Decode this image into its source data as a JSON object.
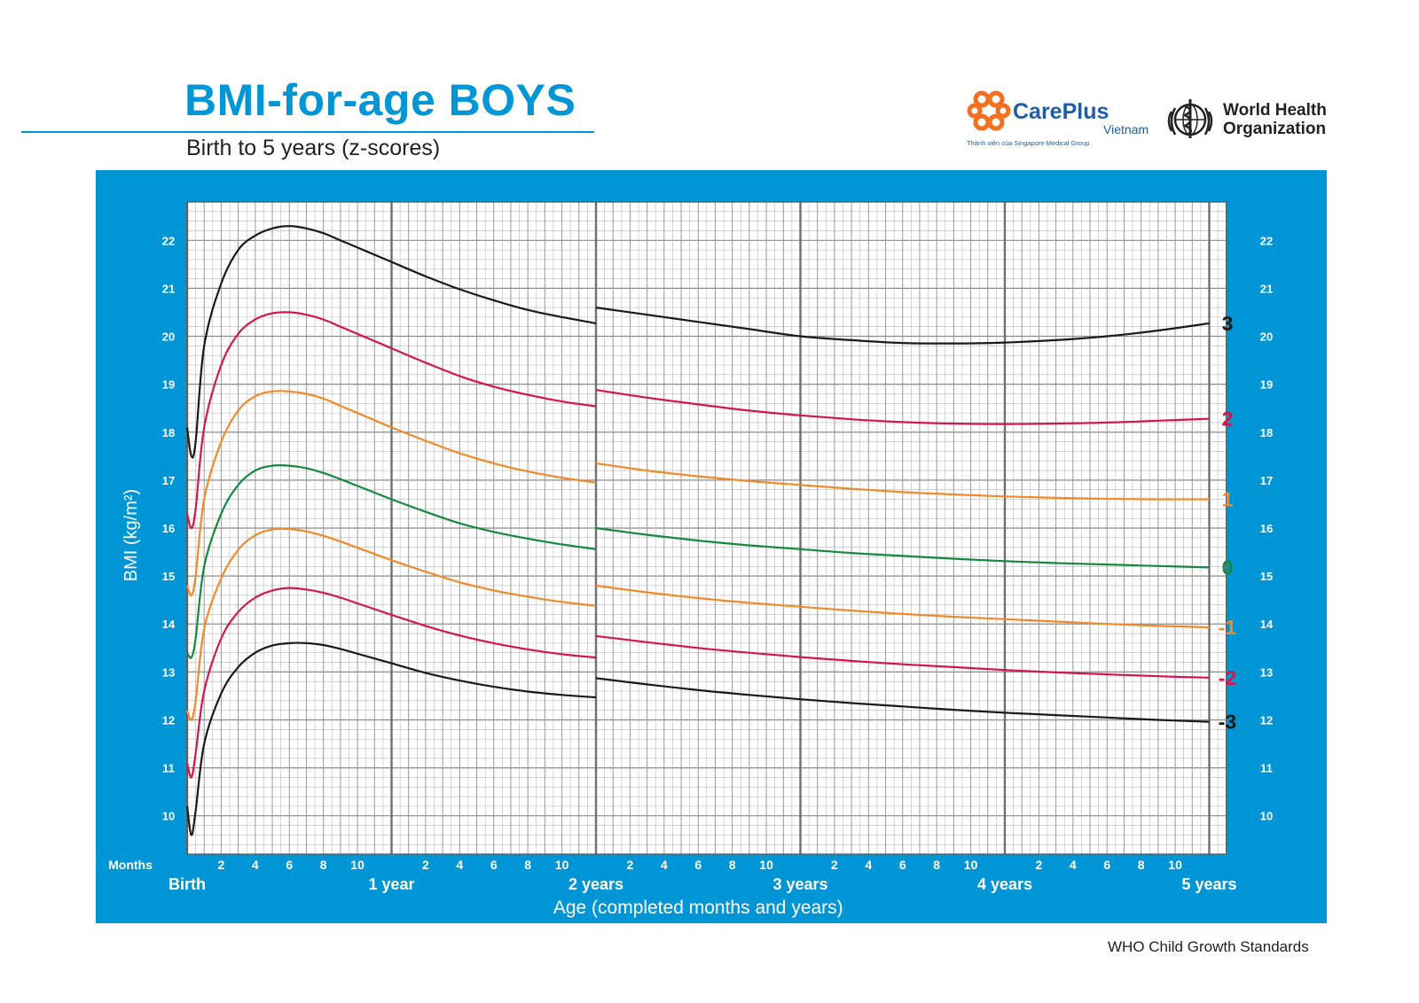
{
  "header": {
    "title": "BMI-for-age BOYS",
    "subtitle": "Birth to 5 years (z-scores)"
  },
  "logos": {
    "careplus": {
      "name": "CarePlus",
      "sub": "Vietnam",
      "tagline": "Thành viên của Singapore Medical Group",
      "icon": "careplus-cross-icon",
      "color": "#f37021"
    },
    "who": {
      "line1": "World Health",
      "line2": "Organization",
      "icon": "who-emblem-icon"
    }
  },
  "footer": {
    "source": "WHO Child Growth Standards"
  },
  "colors": {
    "panel": "#0096d6",
    "grid_fine": "#b9b9b9",
    "grid_major": "#707070",
    "sd3": "#1a1a1a",
    "sd2": "#d6164b",
    "sd1": "#f08a2a",
    "median": "#158a3e"
  },
  "chart_data": {
    "type": "line",
    "title": "BMI-for-age BOYS",
    "subtitle": "Birth to 5 years (z-scores)",
    "xlabel": "Age (completed months and years)",
    "ylabel": "BMI (kg/m²)",
    "x_unit_label": "Months",
    "xlim": [
      0,
      61
    ],
    "ylim": [
      9.2,
      22.8
    ],
    "y_ticks": [
      10,
      11,
      12,
      13,
      14,
      15,
      16,
      17,
      18,
      19,
      20,
      21,
      22
    ],
    "month_tick_labels": [
      "2",
      "4",
      "6",
      "8",
      "10"
    ],
    "year_labels": [
      {
        "month": 0,
        "label": "Birth"
      },
      {
        "month": 12,
        "label": "1 year"
      },
      {
        "month": 24,
        "label": "2 years"
      },
      {
        "month": 36,
        "label": "3 years"
      },
      {
        "month": 48,
        "label": "4 years"
      },
      {
        "month": 60,
        "label": "5 years"
      }
    ],
    "grid": true,
    "segment_break_month": 24,
    "series": [
      {
        "name": "3",
        "color_key": "sd3",
        "seg1": {
          "x": [
            0,
            0.25,
            0.5,
            1,
            2,
            3,
            4,
            5,
            6,
            7,
            8,
            9,
            10,
            11,
            12,
            14,
            16,
            18,
            20,
            22,
            24
          ],
          "y": [
            18.1,
            17.5,
            17.8,
            19.8,
            21.1,
            21.8,
            22.1,
            22.25,
            22.3,
            22.25,
            22.15,
            22.0,
            21.85,
            21.7,
            21.55,
            21.25,
            20.98,
            20.75,
            20.55,
            20.4,
            20.27
          ]
        },
        "seg2": {
          "x": [
            24,
            27,
            30,
            33,
            36,
            39,
            42,
            45,
            48,
            51,
            54,
            57,
            60
          ],
          "y": [
            20.6,
            20.45,
            20.3,
            20.15,
            20.0,
            19.92,
            19.86,
            19.85,
            19.87,
            19.92,
            20.0,
            20.12,
            20.27
          ]
        }
      },
      {
        "name": "2",
        "color_key": "sd2",
        "seg1": {
          "x": [
            0,
            0.25,
            0.5,
            1,
            2,
            3,
            4,
            5,
            6,
            7,
            8,
            9,
            10,
            11,
            12,
            14,
            16,
            18,
            20,
            22,
            24
          ],
          "y": [
            16.3,
            16.0,
            16.4,
            18.1,
            19.4,
            20.05,
            20.35,
            20.48,
            20.5,
            20.45,
            20.35,
            20.2,
            20.05,
            19.9,
            19.75,
            19.45,
            19.17,
            18.95,
            18.78,
            18.64,
            18.54
          ]
        },
        "seg2": {
          "x": [
            24,
            27,
            30,
            33,
            36,
            39,
            42,
            45,
            48,
            51,
            54,
            57,
            60
          ],
          "y": [
            18.88,
            18.72,
            18.58,
            18.45,
            18.35,
            18.27,
            18.21,
            18.18,
            18.17,
            18.18,
            18.2,
            18.24,
            18.28
          ]
        }
      },
      {
        "name": "1",
        "color_key": "sd1",
        "seg1": {
          "x": [
            0,
            0.25,
            0.5,
            1,
            2,
            3,
            4,
            5,
            6,
            7,
            8,
            9,
            10,
            11,
            12,
            14,
            16,
            18,
            20,
            22,
            24
          ],
          "y": [
            14.8,
            14.6,
            15.0,
            16.6,
            17.8,
            18.45,
            18.75,
            18.85,
            18.85,
            18.8,
            18.7,
            18.55,
            18.4,
            18.25,
            18.1,
            17.82,
            17.56,
            17.35,
            17.18,
            17.05,
            16.95
          ]
        },
        "seg2": {
          "x": [
            24,
            27,
            30,
            33,
            36,
            39,
            42,
            45,
            48,
            51,
            54,
            57,
            60
          ],
          "y": [
            17.35,
            17.2,
            17.08,
            16.98,
            16.9,
            16.82,
            16.75,
            16.7,
            16.66,
            16.63,
            16.61,
            16.6,
            16.6
          ]
        }
      },
      {
        "name": "0",
        "color_key": "median",
        "seg1": {
          "x": [
            0,
            0.25,
            0.5,
            1,
            2,
            3,
            4,
            5,
            6,
            7,
            8,
            9,
            10,
            11,
            12,
            14,
            16,
            18,
            20,
            22,
            24
          ],
          "y": [
            13.4,
            13.3,
            13.7,
            15.2,
            16.3,
            16.9,
            17.2,
            17.3,
            17.3,
            17.25,
            17.15,
            17.02,
            16.88,
            16.74,
            16.6,
            16.34,
            16.1,
            15.92,
            15.78,
            15.66,
            15.56
          ]
        },
        "seg2": {
          "x": [
            24,
            27,
            30,
            33,
            36,
            39,
            42,
            45,
            48,
            51,
            54,
            57,
            60
          ],
          "y": [
            16.0,
            15.86,
            15.74,
            15.64,
            15.56,
            15.48,
            15.42,
            15.36,
            15.31,
            15.27,
            15.24,
            15.21,
            15.18
          ]
        }
      },
      {
        "name": "-1",
        "color_key": "sd1",
        "seg1": {
          "x": [
            0,
            0.25,
            0.5,
            1,
            2,
            3,
            4,
            5,
            6,
            7,
            8,
            9,
            10,
            11,
            12,
            14,
            16,
            18,
            20,
            22,
            24
          ],
          "y": [
            12.2,
            12.0,
            12.4,
            13.9,
            14.95,
            15.55,
            15.85,
            15.97,
            15.98,
            15.93,
            15.84,
            15.72,
            15.59,
            15.46,
            15.33,
            15.09,
            14.87,
            14.7,
            14.57,
            14.46,
            14.38
          ]
        },
        "seg2": {
          "x": [
            24,
            27,
            30,
            33,
            36,
            39,
            42,
            45,
            48,
            51,
            54,
            57,
            60
          ],
          "y": [
            14.8,
            14.66,
            14.54,
            14.44,
            14.36,
            14.28,
            14.21,
            14.15,
            14.1,
            14.05,
            14.0,
            13.96,
            13.93
          ]
        }
      },
      {
        "name": "-2",
        "color_key": "sd2",
        "seg1": {
          "x": [
            0,
            0.25,
            0.5,
            1,
            2,
            3,
            4,
            5,
            6,
            7,
            8,
            9,
            10,
            11,
            12,
            14,
            16,
            18,
            20,
            22,
            24
          ],
          "y": [
            11.1,
            10.8,
            11.3,
            12.6,
            13.7,
            14.25,
            14.55,
            14.7,
            14.75,
            14.72,
            14.65,
            14.55,
            14.43,
            14.31,
            14.19,
            13.96,
            13.76,
            13.6,
            13.47,
            13.37,
            13.3
          ]
        },
        "seg2": {
          "x": [
            24,
            27,
            30,
            33,
            36,
            39,
            42,
            45,
            48,
            51,
            54,
            57,
            60
          ],
          "y": [
            13.75,
            13.62,
            13.5,
            13.4,
            13.31,
            13.23,
            13.16,
            13.1,
            13.04,
            12.99,
            12.95,
            12.91,
            12.88
          ]
        }
      },
      {
        "name": "-3",
        "color_key": "sd3",
        "seg1": {
          "x": [
            0,
            0.25,
            0.5,
            1,
            2,
            3,
            4,
            5,
            6,
            7,
            8,
            9,
            10,
            11,
            12,
            14,
            16,
            18,
            20,
            22,
            24
          ],
          "y": [
            10.2,
            9.6,
            10.1,
            11.5,
            12.55,
            13.1,
            13.4,
            13.55,
            13.6,
            13.6,
            13.56,
            13.48,
            13.38,
            13.28,
            13.18,
            12.98,
            12.82,
            12.69,
            12.59,
            12.52,
            12.47
          ]
        },
        "seg2": {
          "x": [
            24,
            27,
            30,
            33,
            36,
            39,
            42,
            45,
            48,
            51,
            54,
            57,
            60
          ],
          "y": [
            12.87,
            12.74,
            12.62,
            12.52,
            12.43,
            12.35,
            12.28,
            12.21,
            12.15,
            12.1,
            12.05,
            12.0,
            11.96
          ]
        }
      }
    ]
  }
}
